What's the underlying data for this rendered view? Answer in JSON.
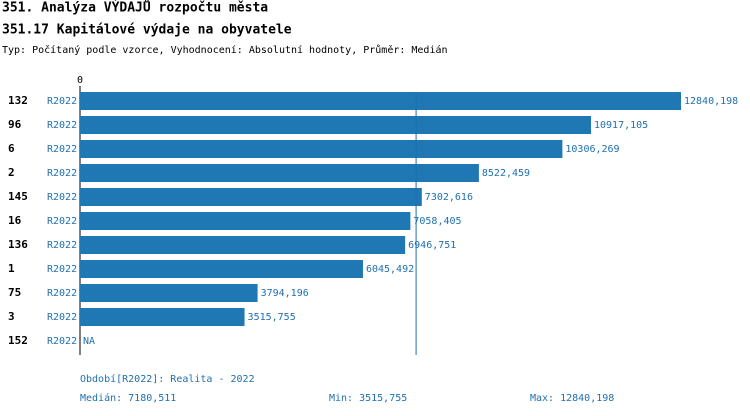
{
  "chart_data": {
    "type": "bar",
    "orientation": "horizontal",
    "title": "351. Analýza VÝDAJŮ rozpočtu města",
    "subtitle": "351.17 Kapitálové výdaje na obyvatele",
    "note": "Typ: Počítaný podle vzorce, Vyhodnocení: Absolutní hodnoty, Průměr: Medián",
    "categories": [
      "132",
      "96",
      "6",
      "2",
      "145",
      "16",
      "136",
      "1",
      "75",
      "3",
      "152"
    ],
    "series": [
      {
        "name": "R2022",
        "color": "#1f77b4",
        "values": [
          12840.198,
          10917.105,
          10306.269,
          8522.459,
          7302.616,
          7058.405,
          6946.751,
          6045.492,
          3794.196,
          3515.755,
          null
        ],
        "value_labels": [
          "12840,198",
          "10917,105",
          "10306,269",
          "8522,459",
          "7302,616",
          "7058,405",
          "6946,751",
          "6045,492",
          "3794,196",
          "3515,755",
          "NA"
        ]
      }
    ],
    "xlim": [
      0,
      12840.198
    ],
    "xticks": [
      0
    ],
    "period": "Období[R2022]: Realita - 2022",
    "median": {
      "value": 7180.511,
      "label": "Medián: 7180,511"
    },
    "min": {
      "value": 3515.755,
      "label": "Min: 3515,755"
    },
    "max": {
      "value": 12840.198,
      "label": "Max: 12840,198"
    }
  }
}
